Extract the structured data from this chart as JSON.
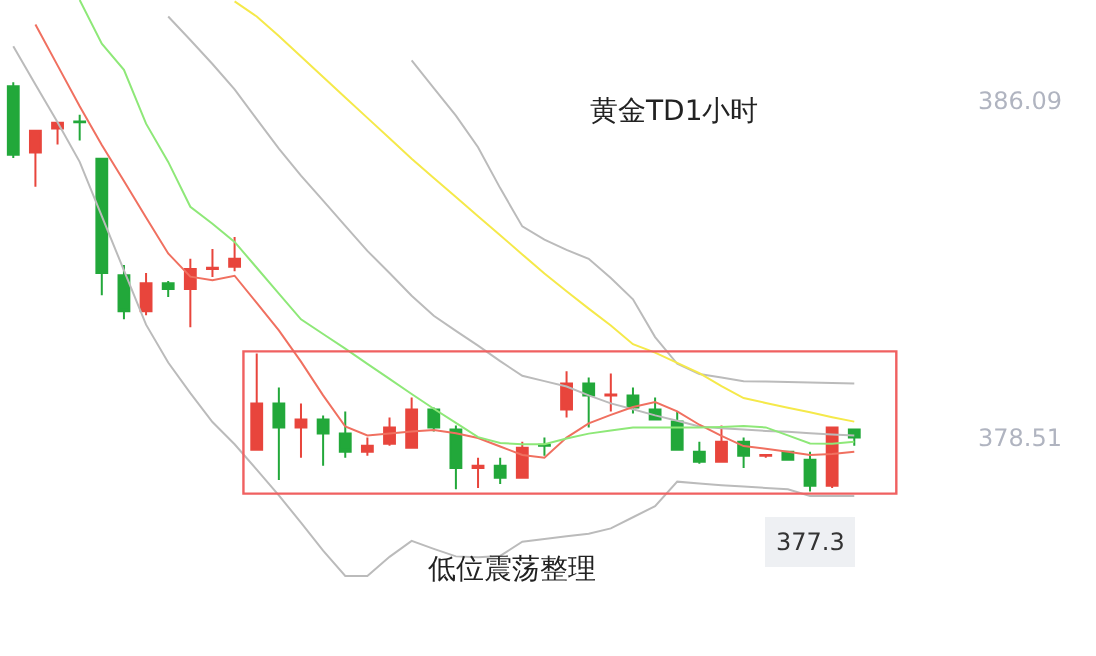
{
  "chart_data": {
    "type": "candlestick",
    "annotations": [
      "黄金TD1小时",
      "低位震荡整理",
      {
        "text": "377.3",
        "y": 377.3
      }
    ],
    "categories": [
      null,
      null,
      null,
      null,
      null,
      null,
      null,
      null,
      null,
      null,
      null,
      null,
      null,
      null,
      null,
      null,
      null,
      null,
      null,
      null,
      null,
      null,
      null,
      null,
      null,
      null,
      null,
      null,
      null,
      null,
      null,
      null,
      null,
      null,
      null,
      null,
      null,
      null,
      null
    ],
    "ohlc": [
      [
        386.41,
        386.5,
        384.8,
        384.87
      ],
      [
        384.92,
        385.41,
        384.15,
        385.41
      ],
      [
        385.46,
        385.59,
        385.1,
        385.59
      ],
      [
        385.62,
        385.77,
        385.19,
        385.6
      ],
      [
        384.78,
        384.78,
        381.71,
        382.21
      ],
      [
        382.16,
        382.39,
        381.17,
        381.35
      ],
      [
        381.35,
        382.21,
        381.26,
        381.98
      ],
      [
        381.98,
        382.03,
        381.67,
        381.85
      ],
      [
        381.85,
        382.53,
        380.99,
        382.3
      ],
      [
        382.3,
        382.75,
        382.12,
        382.33
      ],
      [
        382.35,
        383.02,
        382.25,
        382.53
      ],
      [
        378.24,
        380.4,
        378.24,
        379.28
      ],
      [
        379.28,
        379.64,
        377.56,
        378.74
      ],
      [
        378.74,
        379.28,
        378.06,
        378.92
      ],
      [
        378.92,
        379.01,
        377.88,
        378.6
      ],
      [
        378.6,
        379.1,
        378.06,
        378.19
      ],
      [
        378.19,
        378.51,
        378.1,
        378.33
      ],
      [
        378.37,
        378.96,
        378.33,
        378.74
      ],
      [
        378.28,
        379.41,
        378.28,
        379.14
      ],
      [
        379.14,
        379.19,
        378.65,
        378.74
      ],
      [
        378.69,
        378.78,
        377.35,
        377.83
      ],
      [
        377.83,
        378.06,
        377.38,
        377.88
      ],
      [
        377.88,
        378.06,
        377.47,
        377.61
      ],
      [
        377.61,
        378.42,
        377.61,
        378.28
      ],
      [
        378.35,
        378.51,
        378.1,
        378.33
      ],
      [
        379.14,
        380.0,
        378.96,
        379.73
      ],
      [
        379.73,
        379.86,
        378.74,
        379.46
      ],
      [
        379.46,
        379.95,
        379.1,
        379.48
      ],
      [
        379.46,
        379.64,
        379.05,
        379.19
      ],
      [
        379.14,
        379.41,
        378.92,
        378.92
      ],
      [
        378.87,
        379.1,
        378.24,
        378.24
      ],
      [
        378.19,
        378.42,
        377.92,
        377.97
      ],
      [
        377.97,
        378.78,
        377.97,
        378.42
      ],
      [
        378.42,
        378.51,
        377.83,
        378.1
      ],
      [
        378.1,
        378.12,
        378.06,
        378.12
      ],
      [
        378.19,
        378.19,
        378.01,
        378.01
      ],
      [
        378.01,
        378.19,
        377.3,
        377.43
      ],
      [
        377.43,
        378.74,
        377.38,
        378.74
      ],
      [
        378.69,
        378.69,
        378.33,
        378.51
      ]
    ],
    "colors": [
      "#22a83a",
      "#e8453c",
      "#e8453c",
      "#22a83a",
      "#22a83a",
      "#22a83a",
      "#e8453c",
      "#22a83a",
      "#e8453c",
      "#e8453c",
      "#e8453c",
      "#e8453c",
      "#22a83a",
      "#e8453c",
      "#22a83a",
      "#22a83a",
      "#e8453c",
      "#e8453c",
      "#e8453c",
      "#22a83a",
      "#22a83a",
      "#e8453c",
      "#22a83a",
      "#e8453c",
      "#22a83a",
      "#e8453c",
      "#22a83a",
      "#e8453c",
      "#22a83a",
      "#22a83a",
      "#22a83a",
      "#22a83a",
      "#e8453c",
      "#22a83a",
      "#e8453c",
      "#22a83a",
      "#22a83a",
      "#e8453c",
      "#22a83a"
    ],
    "series": [
      {
        "type": "line",
        "color": "#bbbbbb",
        "values": [
          null,
          null,
          null,
          null,
          null,
          null,
          null,
          null,
          null,
          null,
          null,
          null,
          null,
          null,
          null,
          null,
          null,
          null,
          386.99,
          386.37,
          385.75,
          385.04,
          384.12,
          383.26,
          382.96,
          382.73,
          382.53,
          382.1,
          381.62,
          380.77,
          380.17,
          379.94,
          379.86,
          379.78,
          379.77,
          379.76,
          379.75,
          379.74,
          379.73
        ]
      },
      {
        "type": "line",
        "color": "#bbbbbb",
        "values": [
          null,
          null,
          null,
          null,
          null,
          null,
          null,
          387.98,
          387.45,
          386.91,
          386.34,
          385.67,
          385.01,
          384.4,
          383.84,
          383.27,
          382.71,
          382.21,
          381.7,
          381.25,
          380.91,
          380.58,
          380.23,
          379.9,
          379.78,
          379.66,
          379.46,
          379.28,
          379.15,
          379.01,
          378.89,
          378.76,
          378.72,
          378.69,
          378.66,
          378.64,
          378.61,
          378.58,
          378.56
        ]
      },
      {
        "type": "line",
        "color": "#bbbbbb",
        "values": [
          387.31,
          386.45,
          385.6,
          384.71,
          383.49,
          382.27,
          381.05,
          380.2,
          379.51,
          378.86,
          378.36,
          377.79,
          377.21,
          376.6,
          375.97,
          375.4,
          375.4,
          375.83,
          376.19,
          376.01,
          375.84,
          375.82,
          375.85,
          376.17,
          376.23,
          376.29,
          376.35,
          376.47,
          376.72,
          376.97,
          377.52,
          377.48,
          377.44,
          377.41,
          377.38,
          377.35,
          377.2,
          377.2,
          377.2
        ]
      },
      {
        "type": "line",
        "color": "#f07060",
        "values": [
          null,
          387.8,
          386.88,
          385.96,
          385.09,
          384.28,
          383.46,
          382.65,
          382.13,
          382.05,
          382.15,
          381.54,
          380.92,
          380.22,
          379.46,
          378.76,
          378.56,
          378.6,
          378.65,
          378.68,
          378.61,
          378.5,
          378.31,
          378.12,
          378.06,
          378.51,
          378.83,
          379.02,
          379.2,
          379.31,
          379.1,
          378.8,
          378.55,
          378.32,
          378.26,
          378.19,
          378.12,
          378.14,
          378.19
        ]
      },
      {
        "type": "line",
        "color": "#8ee878",
        "values": [
          null,
          null,
          null,
          388.35,
          387.37,
          386.78,
          385.57,
          384.71,
          383.7,
          383.32,
          382.91,
          382.33,
          381.75,
          381.17,
          380.84,
          380.51,
          380.17,
          379.83,
          379.49,
          379.16,
          378.84,
          378.52,
          378.39,
          378.36,
          378.36,
          378.49,
          378.6,
          378.67,
          378.74,
          378.74,
          378.74,
          378.74,
          378.75,
          378.77,
          378.74,
          378.56,
          378.38,
          378.37,
          378.42
        ]
      },
      {
        "type": "line",
        "color": "#f5e94a",
        "values": [
          null,
          null,
          null,
          null,
          null,
          null,
          null,
          null,
          null,
          null,
          388.32,
          387.98,
          387.54,
          387.08,
          386.62,
          386.16,
          385.7,
          385.24,
          384.78,
          384.35,
          383.92,
          383.49,
          383.06,
          382.63,
          382.2,
          381.8,
          381.41,
          381.03,
          380.61,
          380.42,
          380.19,
          379.96,
          379.67,
          379.4,
          379.29,
          379.18,
          379.08,
          378.97,
          378.87
        ]
      }
    ],
    "ylim": [
      373.6,
      388.35
    ],
    "yticks": [
      386.09,
      378.51
    ],
    "tick_labels": "y"
  }
}
